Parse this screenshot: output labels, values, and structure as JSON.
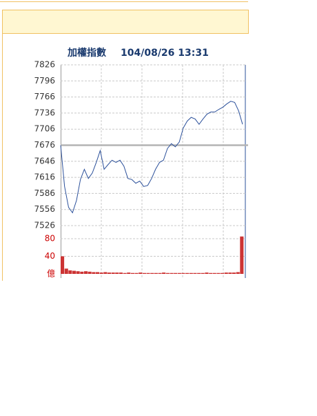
{
  "chart_data": [
    {
      "type": "line",
      "title": "加權指數",
      "subtitle": "104/08/26 13:31",
      "values": [
        7676,
        7599,
        7560,
        7550,
        7573,
        7612,
        7631,
        7614,
        7624,
        7644,
        7666,
        7631,
        7640,
        7648,
        7644,
        7648,
        7637,
        7614,
        7612,
        7605,
        7609,
        7599,
        7601,
        7614,
        7631,
        7644,
        7648,
        7670,
        7679,
        7673,
        7682,
        7708,
        7721,
        7728,
        7725,
        7715,
        7725,
        7734,
        7738,
        7738,
        7743,
        7747,
        7753,
        7758,
        7756,
        7740,
        7715
      ],
      "color": "#2a4f9a",
      "reference": 7676,
      "reference_color": "#b4b4b4",
      "ylim": [
        7526,
        7826
      ],
      "yticks": [
        7826,
        7796,
        7766,
        7736,
        7706,
        7676,
        7646,
        7616,
        7586,
        7556,
        7526
      ],
      "grid": true
    },
    {
      "type": "bar",
      "values": [
        40,
        12,
        8,
        7,
        6,
        5,
        6,
        5,
        4,
        4,
        3,
        4,
        3,
        3,
        3,
        3,
        2,
        3,
        2,
        2,
        3,
        2,
        2,
        2,
        2,
        2,
        3,
        2,
        2,
        2,
        2,
        2,
        2,
        2,
        2,
        2,
        2,
        3,
        2,
        2,
        2,
        2,
        3,
        3,
        3,
        4,
        85
      ],
      "color": "#cc3333",
      "ylim": [
        0,
        90
      ],
      "yticks": [
        80,
        40,
        {
          "value": 0,
          "label": "億"
        }
      ],
      "grid": true
    }
  ]
}
